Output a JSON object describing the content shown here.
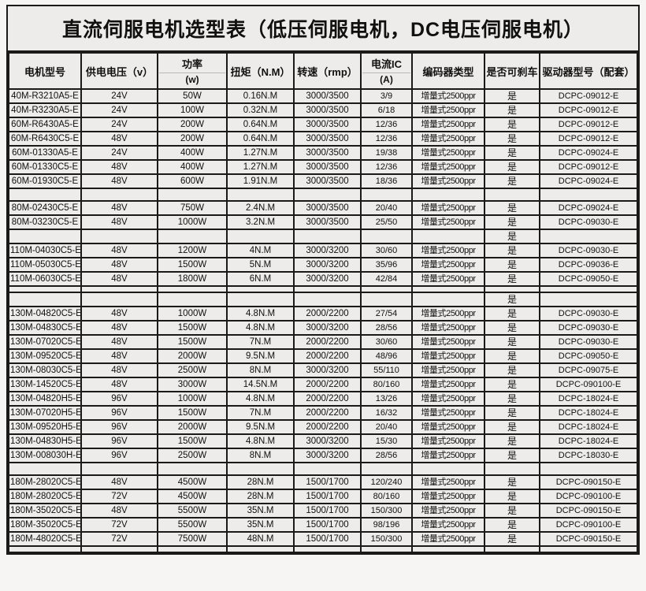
{
  "page": {
    "title": "直流伺服电机选型表（低压伺服电机，DC电压伺服电机）"
  },
  "colors": {
    "page-bg": "#f6f5f3",
    "cell-bg": "#edecea",
    "grid": "#1a1a1a",
    "text": "#101010",
    "header-divider": "#b9b9b9"
  },
  "table": {
    "columns": [
      {
        "id": "model",
        "label": "电机型号",
        "sub": ""
      },
      {
        "id": "voltage",
        "label": "供电电压（v）",
        "sub": ""
      },
      {
        "id": "power",
        "label": "功率",
        "sub": "(w)"
      },
      {
        "id": "torque",
        "label": "扭矩（N.M）",
        "sub": ""
      },
      {
        "id": "speed",
        "label": "转速（rmp）",
        "sub": ""
      },
      {
        "id": "current",
        "label": "电流IC",
        "sub": "(A)"
      },
      {
        "id": "encoder",
        "label": "编码器类型",
        "sub": ""
      },
      {
        "id": "brake",
        "label": "是否可刹车",
        "sub": ""
      },
      {
        "id": "driver",
        "label": "驱动器型号（配套）",
        "sub": ""
      }
    ],
    "rows": [
      {
        "type": "data",
        "cells": [
          "40M-R3210A5-E",
          "24V",
          "50W",
          "0.16N.M",
          "3000/3500",
          "3/9",
          "增量式2500ppr",
          "是",
          "DCPC-09012-E"
        ]
      },
      {
        "type": "data",
        "cells": [
          "40M-R3230A5-E",
          "24V",
          "100W",
          "0.32N.M",
          "3000/3500",
          "6/18",
          "增量式2500ppr",
          "是",
          "DCPC-09012-E"
        ]
      },
      {
        "type": "data",
        "cells": [
          "60M-R6430A5-E",
          "24V",
          "200W",
          "0.64N.M",
          "3000/3500",
          "12/36",
          "增量式2500ppr",
          "是",
          "DCPC-09012-E"
        ]
      },
      {
        "type": "data",
        "cells": [
          "60M-R6430C5-E",
          "48V",
          "200W",
          "0.64N.M",
          "3000/3500",
          "12/36",
          "增量式2500ppr",
          "是",
          "DCPC-09012-E"
        ]
      },
      {
        "type": "data",
        "cells": [
          "60M-01330A5-E",
          "24V",
          "400W",
          "1.27N.M",
          "3000/3500",
          "19/38",
          "增量式2500ppr",
          "是",
          "DCPC-09024-E"
        ]
      },
      {
        "type": "data",
        "cells": [
          "60M-01330C5-E",
          "48V",
          "400W",
          "1.27N.M",
          "3000/3500",
          "12/36",
          "增量式2500ppr",
          "是",
          "DCPC-09012-E"
        ]
      },
      {
        "type": "data",
        "cells": [
          "60M-01930C5-E",
          "48V",
          "600W",
          "1.91N.M",
          "3000/3500",
          "18/36",
          "增量式2500ppr",
          "是",
          "DCPC-09024-E"
        ]
      },
      {
        "type": "spacer",
        "cells": [
          "",
          "",
          "",
          "",
          "",
          "",
          "",
          "",
          ""
        ]
      },
      {
        "type": "data",
        "cells": [
          "80M-02430C5-E",
          "48V",
          "750W",
          "2.4N.M",
          "3000/3500",
          "20/40",
          "增量式2500ppr",
          "是",
          "DCPC-09024-E"
        ]
      },
      {
        "type": "data",
        "cells": [
          "80M-03230C5-E",
          "48V",
          "1000W",
          "3.2N.M",
          "3000/3500",
          "25/50",
          "增量式2500ppr",
          "是",
          "DCPC-09030-E"
        ]
      },
      {
        "type": "spacer",
        "cells": [
          "",
          "",
          "",
          "",
          "",
          "",
          "",
          "是",
          ""
        ]
      },
      {
        "type": "data",
        "cells": [
          "110M-04030C5-E",
          "48V",
          "1200W",
          "4N.M",
          "3000/3200",
          "30/60",
          "增量式2500ppr",
          "是",
          "DCPC-09030-E"
        ]
      },
      {
        "type": "data",
        "cells": [
          "110M-05030C5-E",
          "48V",
          "1500W",
          "5N.M",
          "3000/3200",
          "35/96",
          "增量式2500ppr",
          "是",
          "DCPC-09036-E"
        ]
      },
      {
        "type": "data",
        "cells": [
          "110M-06030C5-E",
          "48V",
          "1800W",
          "6N.M",
          "3000/3200",
          "42/84",
          "增量式2500ppr",
          "是",
          "DCPC-09050-E"
        ]
      },
      {
        "type": "spacer-short",
        "cells": [
          "",
          "",
          "",
          "",
          "",
          "",
          "",
          "",
          ""
        ]
      },
      {
        "type": "spacer",
        "cells": [
          "",
          "",
          "",
          "",
          "",
          "",
          "",
          "是",
          ""
        ]
      },
      {
        "type": "data",
        "cells": [
          "130M-04820C5-E",
          "48V",
          "1000W",
          "4.8N.M",
          "2000/2200",
          "27/54",
          "增量式2500ppr",
          "是",
          "DCPC-09030-E"
        ]
      },
      {
        "type": "data",
        "cells": [
          "130M-04830C5-E",
          "48V",
          "1500W",
          "4.8N.M",
          "3000/3200",
          "28/56",
          "增量式2500ppr",
          "是",
          "DCPC-09030-E"
        ]
      },
      {
        "type": "data",
        "cells": [
          "130M-07020C5-E",
          "48V",
          "1500W",
          "7N.M",
          "2000/2200",
          "30/60",
          "增量式2500ppr",
          "是",
          "DCPC-09030-E"
        ]
      },
      {
        "type": "data",
        "cells": [
          "130M-09520C5-E",
          "48V",
          "2000W",
          "9.5N.M",
          "2000/2200",
          "48/96",
          "增量式2500ppr",
          "是",
          "DCPC-09050-E"
        ]
      },
      {
        "type": "data",
        "cells": [
          "130M-08030C5-E",
          "48V",
          "2500W",
          "8N.M",
          "3000/3200",
          "55/110",
          "增量式2500ppr",
          "是",
          "DCPC-09075-E"
        ]
      },
      {
        "type": "data",
        "cells": [
          "130M-14520C5-E",
          "48V",
          "3000W",
          "14.5N.M",
          "2000/2200",
          "80/160",
          "增量式2500ppr",
          "是",
          "DCPC-090100-E"
        ]
      },
      {
        "type": "data",
        "cells": [
          "130M-04820H5-E",
          "96V",
          "1000W",
          "4.8N.M",
          "2000/2200",
          "13/26",
          "增量式2500ppr",
          "是",
          "DCPC-18024-E"
        ]
      },
      {
        "type": "data",
        "cells": [
          "130M-07020H5-E",
          "96V",
          "1500W",
          "7N.M",
          "2000/2200",
          "16/32",
          "增量式2500ppr",
          "是",
          "DCPC-18024-E"
        ]
      },
      {
        "type": "data",
        "cells": [
          "130M-09520H5-E",
          "96V",
          "2000W",
          "9.5N.M",
          "2000/2200",
          "20/40",
          "增量式2500ppr",
          "是",
          "DCPC-18024-E"
        ]
      },
      {
        "type": "data",
        "cells": [
          "130M-04830H5-E",
          "96V",
          "1500W",
          "4.8N.M",
          "3000/3200",
          "15/30",
          "增量式2500ppr",
          "是",
          "DCPC-18024-E"
        ]
      },
      {
        "type": "data",
        "cells": [
          "130M-008030H-E",
          "96V",
          "2500W",
          "8N.M",
          "3000/3200",
          "28/56",
          "增量式2500ppr",
          "是",
          "DCPC-18030-E"
        ]
      },
      {
        "type": "spacer",
        "cells": [
          "",
          "",
          "",
          "",
          "",
          "",
          "",
          "",
          ""
        ]
      },
      {
        "type": "data",
        "cells": [
          "180M-28020C5-E",
          "48V",
          "4500W",
          "28N.M",
          "1500/1700",
          "120/240",
          "增量式2500ppr",
          "是",
          "DCPC-090150-E"
        ]
      },
      {
        "type": "data",
        "cells": [
          "180M-28020C5-E",
          "72V",
          "4500W",
          "28N.M",
          "1500/1700",
          "80/160",
          "增量式2500ppr",
          "是",
          "DCPC-090100-E"
        ]
      },
      {
        "type": "data",
        "cells": [
          "180M-35020C5-E",
          "48V",
          "5500W",
          "35N.M",
          "1500/1700",
          "150/300",
          "增量式2500ppr",
          "是",
          "DCPC-090150-E"
        ]
      },
      {
        "type": "data",
        "cells": [
          "180M-35020C5-E",
          "72V",
          "5500W",
          "35N.M",
          "1500/1700",
          "98/196",
          "增量式2500ppr",
          "是",
          "DCPC-090100-E"
        ]
      },
      {
        "type": "data",
        "cells": [
          "180M-48020C5-E",
          "72V",
          "7500W",
          "48N.M",
          "1500/1700",
          "150/300",
          "增量式2500ppr",
          "是",
          "DCPC-090150-E"
        ]
      },
      {
        "type": "spacer-short",
        "cells": [
          "",
          "",
          "",
          "",
          "",
          "",
          "",
          "",
          ""
        ]
      }
    ]
  }
}
